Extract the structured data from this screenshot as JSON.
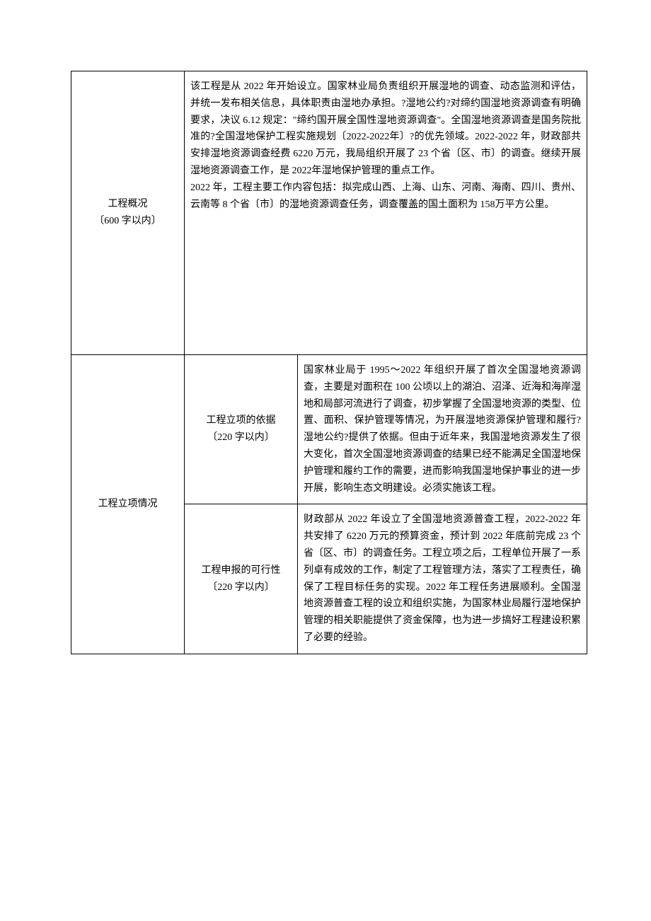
{
  "table": {
    "rows": [
      {
        "label": "工程概况\n〔600 字以内〕",
        "content": "该工程是从 2022 年开始设立。国家林业局负责组织开展湿地的调查、动态监测和评估，并统一发布相关信息，具体职责由湿地办承担。?湿地公约?对缔约国湿地资源调查有明确要求，决议 6.12 规定：\"缔约国开展全国性湿地资源调查\"。全国湿地资源调查是国务院批准的?全国湿地保护工程实施规划〔2022-2022年〕?的优先领域。2022-2022 年，财政部共安排湿地资源调查经费 6220 万元，我局组织开展了 23 个省〔区、市〕的调查。继续开展湿地资源调查工作，是 2022年湿地保护管理的重点工作。\n2022 年，工程主要工作内容包括：拟完成山西、上海、山东、河南、海南、四川、贵州、云南等 8 个省〔市〕的湿地资源调查任务，调查覆盖的国土面积为 158万平方公里。"
      },
      {
        "groupLabel": "工程立项情况",
        "subLabel": "工程立项的依据\n〔220 字以内〕",
        "content": "国家林业局于 1995～2022 年组织开展了首次全国湿地资源调查，主要是对面积在 100 公顷以上的湖泊、沼泽、近海和海岸湿地和局部河流进行了调查，初步掌握了全国湿地资源的类型、位置、面积、保护管理等情况，为开展湿地资源保护管理和履行?湿地公约?提供了依据。但由于近年来，我国湿地资源发生了很大变化，首次全国湿地资源调查的结果已经不能满足全国湿地保护管理和履约工作的需要，进而影响我国湿地保护事业的进一步开展，影响生态文明建设。必须实施该工程。"
      },
      {
        "subLabel": "工程申报的可行性\n〔220 字以内〕",
        "content": "财政部从 2022 年设立了全国湿地资源普查工程，2022-2022 年共安排了 6220 万元的预算资金，预计到 2022 年底前完成 23 个省〔区、市〕的调查任务。工程立项之后，工程单位开展了一系列卓有成效的工作，制定了工程管理方法，落实了工程责任，确保了工程目标任务的实现。2022 年工程任务进展顺利。全国湿地资源普查工程的设立和组织实施，为国家林业局履行湿地保护管理的相关职能提供了资金保障，也为进一步搞好工程建设积累了必要的经验。"
      }
    ]
  }
}
